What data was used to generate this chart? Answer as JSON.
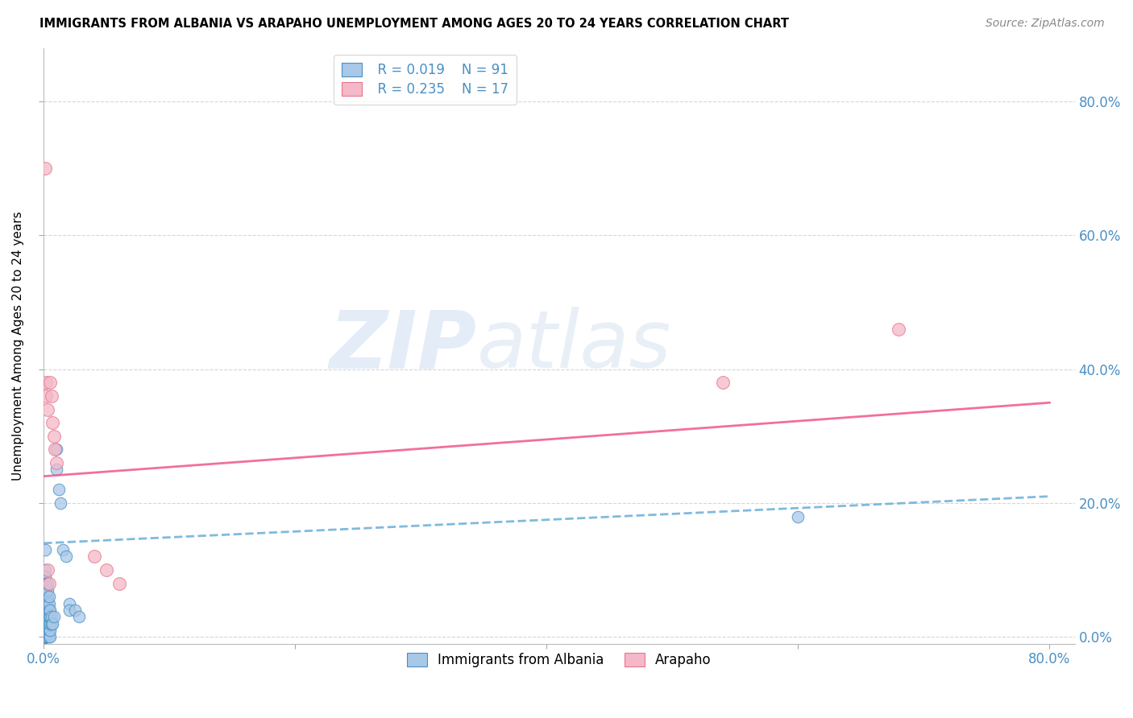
{
  "title": "IMMIGRANTS FROM ALBANIA VS ARAPAHO UNEMPLOYMENT AMONG AGES 20 TO 24 YEARS CORRELATION CHART",
  "source": "Source: ZipAtlas.com",
  "ylabel": "Unemployment Among Ages 20 to 24 years",
  "legend_label1": "Immigrants from Albania",
  "legend_label2": "Arapaho",
  "legend_r1": "R = 0.019",
  "legend_n1": "N = 91",
  "legend_r2": "R = 0.235",
  "legend_n2": "N = 17",
  "watermark_zip": "ZIP",
  "watermark_atlas": "atlas",
  "blue_color": "#a8c8e8",
  "blue_edge": "#4a90c4",
  "pink_color": "#f4b8c8",
  "pink_edge": "#e8758a",
  "blue_line_color": "#6aaed6",
  "pink_line_color": "#f06090",
  "blue_scatter": [
    [
      0.001,
      0.13
    ],
    [
      0.001,
      0.1
    ],
    [
      0.001,
      0.09
    ],
    [
      0.001,
      0.08
    ],
    [
      0.001,
      0.07
    ],
    [
      0.001,
      0.065
    ],
    [
      0.001,
      0.06
    ],
    [
      0.001,
      0.055
    ],
    [
      0.001,
      0.05
    ],
    [
      0.001,
      0.045
    ],
    [
      0.001,
      0.04
    ],
    [
      0.001,
      0.035
    ],
    [
      0.001,
      0.03
    ],
    [
      0.001,
      0.025
    ],
    [
      0.001,
      0.02
    ],
    [
      0.001,
      0.015
    ],
    [
      0.001,
      0.01
    ],
    [
      0.001,
      0.005
    ],
    [
      0.001,
      0.0
    ],
    [
      0.002,
      0.0
    ],
    [
      0.001,
      0.0
    ],
    [
      0.001,
      0.0
    ],
    [
      0.001,
      0.0
    ],
    [
      0.001,
      0.0
    ],
    [
      0.001,
      0.0
    ],
    [
      0.001,
      0.0
    ],
    [
      0.001,
      0.0
    ],
    [
      0.001,
      0.0
    ],
    [
      0.001,
      0.0
    ],
    [
      0.001,
      0.0
    ],
    [
      0.001,
      0.0
    ],
    [
      0.001,
      0.0
    ],
    [
      0.001,
      0.0
    ],
    [
      0.001,
      0.0
    ],
    [
      0.001,
      0.0
    ],
    [
      0.002,
      0.005
    ],
    [
      0.002,
      0.01
    ],
    [
      0.002,
      0.015
    ],
    [
      0.002,
      0.02
    ],
    [
      0.002,
      0.025
    ],
    [
      0.002,
      0.03
    ],
    [
      0.002,
      0.035
    ],
    [
      0.002,
      0.04
    ],
    [
      0.002,
      0.045
    ],
    [
      0.002,
      0.05
    ],
    [
      0.002,
      0.055
    ],
    [
      0.002,
      0.06
    ],
    [
      0.002,
      0.065
    ],
    [
      0.002,
      0.07
    ],
    [
      0.002,
      0.075
    ],
    [
      0.002,
      0.08
    ],
    [
      0.003,
      0.0
    ],
    [
      0.003,
      0.005
    ],
    [
      0.003,
      0.01
    ],
    [
      0.003,
      0.015
    ],
    [
      0.003,
      0.02
    ],
    [
      0.003,
      0.025
    ],
    [
      0.003,
      0.03
    ],
    [
      0.003,
      0.035
    ],
    [
      0.003,
      0.04
    ],
    [
      0.003,
      0.05
    ],
    [
      0.003,
      0.06
    ],
    [
      0.003,
      0.07
    ],
    [
      0.003,
      0.08
    ],
    [
      0.004,
      0.0
    ],
    [
      0.004,
      0.01
    ],
    [
      0.004,
      0.02
    ],
    [
      0.004,
      0.03
    ],
    [
      0.004,
      0.04
    ],
    [
      0.004,
      0.05
    ],
    [
      0.004,
      0.06
    ],
    [
      0.005,
      0.0
    ],
    [
      0.005,
      0.01
    ],
    [
      0.005,
      0.02
    ],
    [
      0.005,
      0.03
    ],
    [
      0.005,
      0.04
    ],
    [
      0.006,
      0.02
    ],
    [
      0.006,
      0.03
    ],
    [
      0.007,
      0.02
    ],
    [
      0.008,
      0.03
    ],
    [
      0.01,
      0.28
    ],
    [
      0.01,
      0.25
    ],
    [
      0.012,
      0.22
    ],
    [
      0.013,
      0.2
    ],
    [
      0.015,
      0.13
    ],
    [
      0.018,
      0.12
    ],
    [
      0.02,
      0.05
    ],
    [
      0.02,
      0.04
    ],
    [
      0.025,
      0.04
    ],
    [
      0.028,
      0.03
    ],
    [
      0.6,
      0.18
    ]
  ],
  "pink_scatter": [
    [
      0.001,
      0.7
    ],
    [
      0.002,
      0.38
    ],
    [
      0.002,
      0.36
    ],
    [
      0.003,
      0.34
    ],
    [
      0.003,
      0.1
    ],
    [
      0.004,
      0.08
    ],
    [
      0.005,
      0.38
    ],
    [
      0.006,
      0.36
    ],
    [
      0.007,
      0.32
    ],
    [
      0.008,
      0.3
    ],
    [
      0.009,
      0.28
    ],
    [
      0.01,
      0.26
    ],
    [
      0.04,
      0.12
    ],
    [
      0.05,
      0.1
    ],
    [
      0.06,
      0.08
    ],
    [
      0.54,
      0.38
    ],
    [
      0.68,
      0.46
    ]
  ],
  "blue_line": [
    0.0,
    0.8,
    0.14,
    0.21
  ],
  "pink_line": [
    0.0,
    0.8,
    0.24,
    0.35
  ],
  "xlim": [
    0.0,
    0.82
  ],
  "ylim": [
    -0.01,
    0.88
  ],
  "right_yticks": [
    0.0,
    0.2,
    0.4,
    0.6,
    0.8
  ],
  "right_yticklabels": [
    "0.0%",
    "20.0%",
    "40.0%",
    "60.0%",
    "80.0%"
  ],
  "xtick_positions": [
    0.0,
    0.2,
    0.4,
    0.6,
    0.8
  ],
  "grid_color": "#cccccc",
  "tick_color": "#4a90c4"
}
